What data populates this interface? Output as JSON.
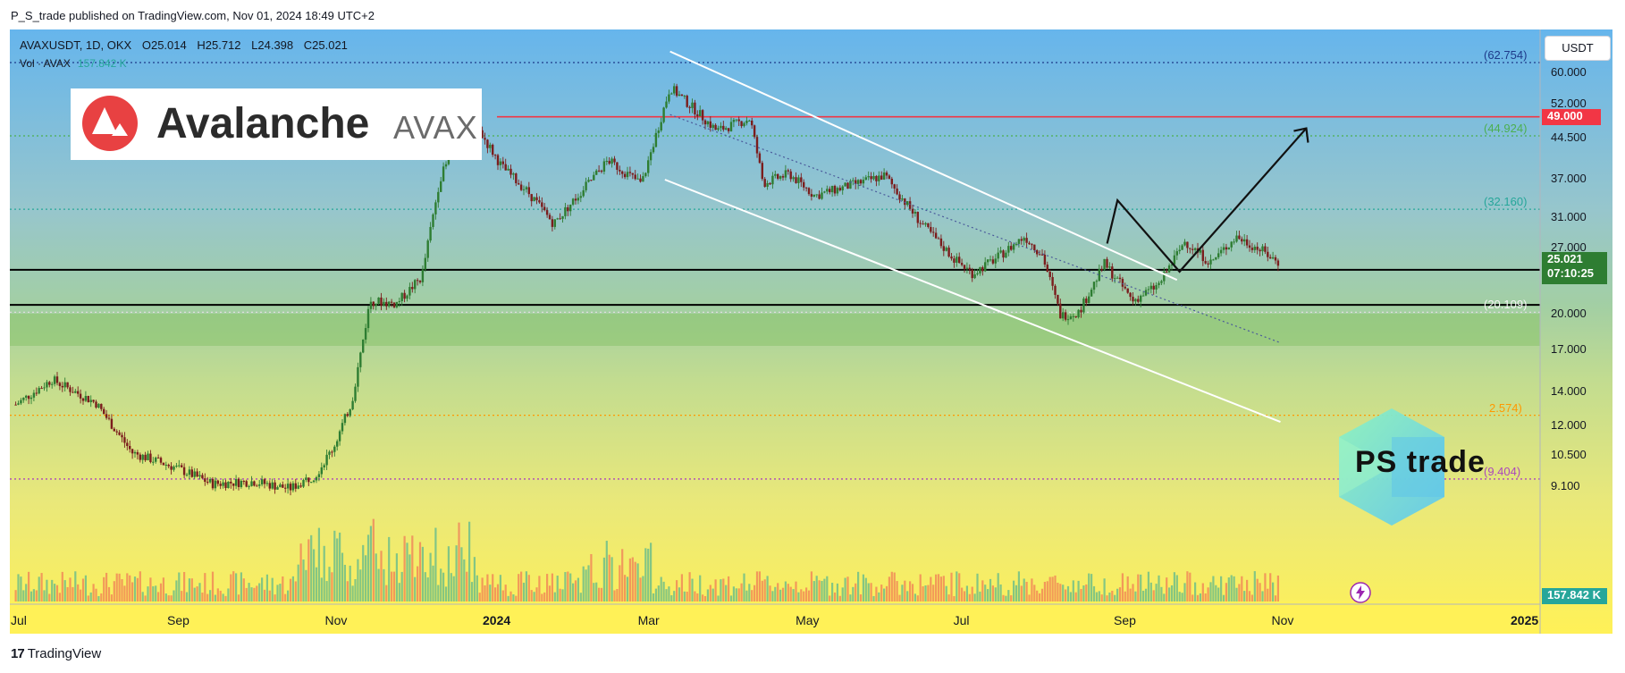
{
  "header": {
    "published": "P_S_trade published on TradingView.com, Nov 01, 2024 18:49 UTC+2"
  },
  "legend": {
    "symbol": "AVAXUSDT, 1D, OKX",
    "open": "O25.014",
    "high": "H25.712",
    "low": "L24.398",
    "close": "C25.021",
    "vol_label": "Vol · AVAX",
    "vol_value": "157.842 K"
  },
  "logo": {
    "name": "Avalanche",
    "ticker": "AVAX"
  },
  "watermark": {
    "text": "PS trade"
  },
  "currency_button": "USDT",
  "colors": {
    "up": "#26a69a",
    "down": "#ef5350",
    "candle_up": "#2e7d32",
    "candle_down": "#7b1d1d",
    "resistance": "#f23645",
    "fib_green": "#4caf50",
    "fib_teal": "#26a69a",
    "fib_purple": "#ab47bc"
  },
  "chart_data": {
    "type": "candlestick",
    "symbol": "AVAXUSDT",
    "exchange": "OKX",
    "timeframe": "1D",
    "y_scale": "log",
    "ylim": [
      7.5,
      68
    ],
    "y_ticks": [
      "60.000",
      "52.000",
      "44.500",
      "37.000",
      "31.000",
      "27.000",
      "20.000",
      "17.000",
      "14.000",
      "12.000",
      "10.500",
      "9.100"
    ],
    "x_ticks": [
      "Jul",
      "Sep",
      "Nov",
      "2024",
      "Mar",
      "May",
      "Jul",
      "Sep",
      "Nov",
      "2025"
    ],
    "close_points": [
      {
        "date": "2023-07-01",
        "close": 13.2
      },
      {
        "date": "2023-07-15",
        "close": 14.8
      },
      {
        "date": "2023-08-01",
        "close": 13.3
      },
      {
        "date": "2023-08-15",
        "close": 10.6
      },
      {
        "date": "2023-09-01",
        "close": 9.9
      },
      {
        "date": "2023-09-15",
        "close": 9.2
      },
      {
        "date": "2023-10-01",
        "close": 9.3
      },
      {
        "date": "2023-10-15",
        "close": 9.0
      },
      {
        "date": "2023-10-25",
        "close": 9.6
      },
      {
        "date": "2023-11-01",
        "close": 10.9
      },
      {
        "date": "2023-11-08",
        "close": 13.4
      },
      {
        "date": "2023-11-15",
        "close": 21.2
      },
      {
        "date": "2023-11-25",
        "close": 20.9
      },
      {
        "date": "2023-12-05",
        "close": 23.6
      },
      {
        "date": "2023-12-12",
        "close": 37.0
      },
      {
        "date": "2023-12-18",
        "close": 43.0
      },
      {
        "date": "2023-12-25",
        "close": 48.0
      },
      {
        "date": "2024-01-05",
        "close": 39.0
      },
      {
        "date": "2024-01-15",
        "close": 34.8
      },
      {
        "date": "2024-01-25",
        "close": 30.1
      },
      {
        "date": "2024-02-05",
        "close": 35.0
      },
      {
        "date": "2024-02-15",
        "close": 40.2
      },
      {
        "date": "2024-02-28",
        "close": 36.1
      },
      {
        "date": "2024-03-10",
        "close": 56.1
      },
      {
        "date": "2024-03-20",
        "close": 50.4
      },
      {
        "date": "2024-03-28",
        "close": 46.0
      },
      {
        "date": "2024-04-10",
        "close": 48.6
      },
      {
        "date": "2024-04-15",
        "close": 36.2
      },
      {
        "date": "2024-04-25",
        "close": 37.8
      },
      {
        "date": "2024-05-05",
        "close": 34.2
      },
      {
        "date": "2024-05-20",
        "close": 36.0
      },
      {
        "date": "2024-06-01",
        "close": 37.5
      },
      {
        "date": "2024-06-15",
        "close": 30.2
      },
      {
        "date": "2024-06-28",
        "close": 25.6
      },
      {
        "date": "2024-07-05",
        "close": 24.0
      },
      {
        "date": "2024-07-15",
        "close": 25.9
      },
      {
        "date": "2024-07-25",
        "close": 28.4
      },
      {
        "date": "2024-08-01",
        "close": 26.1
      },
      {
        "date": "2024-08-08",
        "close": 19.8
      },
      {
        "date": "2024-08-15",
        "close": 20.1
      },
      {
        "date": "2024-08-25",
        "close": 25.1
      },
      {
        "date": "2024-09-05",
        "close": 21.2
      },
      {
        "date": "2024-09-15",
        "close": 22.8
      },
      {
        "date": "2024-09-25",
        "close": 27.8
      },
      {
        "date": "2024-10-05",
        "close": 25.2
      },
      {
        "date": "2024-10-15",
        "close": 28.4
      },
      {
        "date": "2024-10-25",
        "close": 26.6
      },
      {
        "date": "2024-11-01",
        "close": 25.021
      }
    ],
    "fib_levels": [
      {
        "label": "(62.754)",
        "value": 62.754,
        "color": "#1e3a8a"
      },
      {
        "label": "(44.924)",
        "value": 44.924,
        "color": "#4caf50"
      },
      {
        "label": "(32.160)",
        "value": 32.16,
        "color": "#26a69a"
      },
      {
        "label": "(20.109)",
        "value": 20.109,
        "color": "#dddddd"
      },
      {
        "label": "(12.574)",
        "value": 12.574,
        "color": "#ff9800"
      },
      {
        "label": "(9.404)",
        "value": 9.404,
        "color": "#ab47bc"
      }
    ],
    "fib_labels_visible": [
      "(62.754)",
      "(44.924)",
      "(32.160)",
      "(20.109)",
      "2.574)",
      "(9.404)"
    ],
    "horizontal_levels": [
      {
        "value": 49.0,
        "label": "49.000",
        "color": "#f23645"
      },
      {
        "value": 24.4,
        "color": "#000000"
      },
      {
        "value": 20.8,
        "color": "#000000"
      }
    ],
    "last_price": {
      "value": "25.021",
      "countdown": "07:10:25"
    },
    "volume_last": "157.842 K",
    "projection": [
      {
        "date": "2024-08-26",
        "price": 27.5
      },
      {
        "date": "2024-08-30",
        "price": 33.5
      },
      {
        "date": "2024-09-23",
        "price": 24.2
      },
      {
        "date": "2024-11-11",
        "price": 46.5
      }
    ]
  }
}
